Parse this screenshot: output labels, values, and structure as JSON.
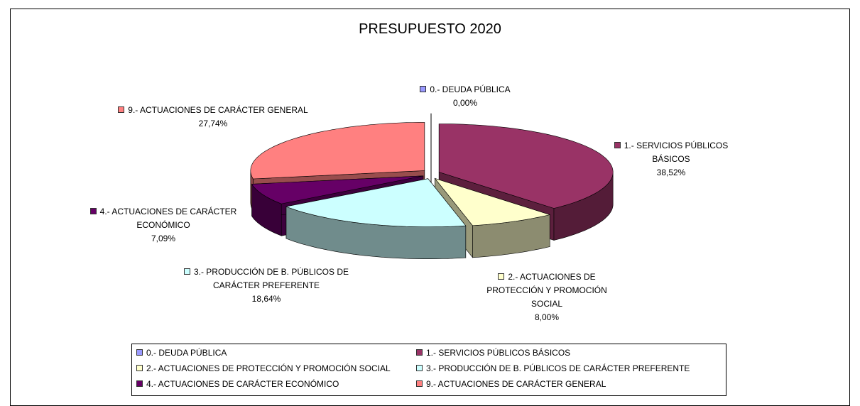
{
  "chart_data": {
    "type": "pie3d",
    "title": "PRESUPUESTO 2020",
    "categories": [
      "0.- DEUDA PÚBLICA",
      "1.- SERVICIOS PÚBLICOS BÁSICOS",
      "2.- ACTUACIONES DE PROTECCIÓN Y PROMOCIÓN SOCIAL",
      "3.- PRODUCCIÓN DE B. PÚBLICOS DE CARÁCTER PREFERENTE",
      "4.- ACTUACIONES DE CARÁCTER ECONÓMICO",
      "9.- ACTUACIONES DE CARÁCTER GENERAL"
    ],
    "values": [
      0.0,
      38.52,
      8.0,
      18.64,
      7.09,
      27.74
    ],
    "value_labels": [
      "0,00%",
      "38,52%",
      "8,00%",
      "18,64%",
      "7,09%",
      "27,74%"
    ],
    "colors": [
      "#9999ff",
      "#993366",
      "#ffffcc",
      "#ccffff",
      "#660066",
      "#ff8080"
    ],
    "legend": "bottom"
  }
}
